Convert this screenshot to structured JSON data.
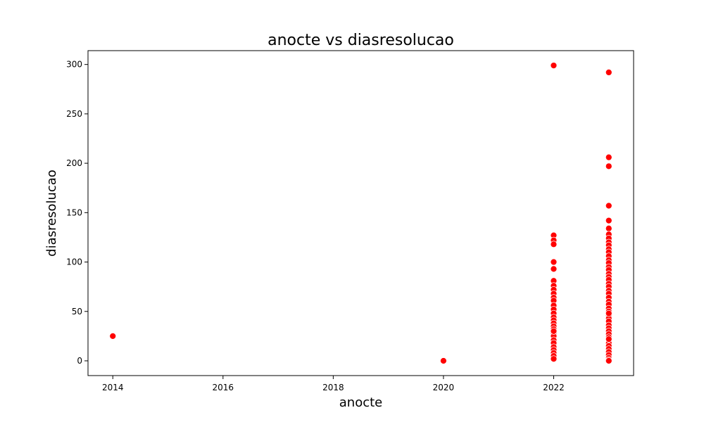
{
  "chart_data": {
    "type": "scatter",
    "title": "anocte vs diasresolucao",
    "xlabel": "anocte",
    "ylabel": "diasresolucao",
    "xlim": [
      2013.55,
      2023.45
    ],
    "ylim": [
      -14.95,
      314
    ],
    "x_ticks": [
      2014,
      2016,
      2018,
      2020,
      2022
    ],
    "x_tick_labels": [
      "2014",
      "2016",
      "2018",
      "2020",
      "2022"
    ],
    "y_ticks": [
      0,
      50,
      100,
      150,
      200,
      250,
      300
    ],
    "y_tick_labels": [
      "0",
      "50",
      "100",
      "150",
      "200",
      "250",
      "300"
    ],
    "grid": false,
    "legend": "none",
    "marker_color": "#ff0000",
    "marker_edge_color": "#ffffff",
    "series": [
      {
        "x": [
          2014,
          2020,
          2022,
          2022,
          2022,
          2022,
          2022,
          2022,
          2022,
          2022,
          2022,
          2022,
          2022,
          2022,
          2022,
          2022,
          2022,
          2022,
          2022,
          2022,
          2022,
          2022,
          2022,
          2022,
          2022,
          2022,
          2022,
          2022,
          2022,
          2022,
          2022,
          2022,
          2023,
          2023,
          2023,
          2023,
          2023,
          2023,
          2023,
          2023,
          2023,
          2023,
          2023,
          2023,
          2023,
          2023,
          2023,
          2023,
          2023,
          2023,
          2023,
          2023,
          2023,
          2023,
          2023,
          2023,
          2023,
          2023,
          2023,
          2023,
          2023,
          2023,
          2023,
          2023,
          2023,
          2023,
          2023,
          2023,
          2023,
          2023,
          2023,
          2023,
          2023,
          2023,
          2023,
          2023,
          2023,
          2023,
          2023,
          2023
        ],
        "y": [
          25,
          0,
          299,
          127,
          122,
          118,
          100,
          93,
          81,
          76,
          72,
          68,
          64,
          61,
          56,
          52,
          48,
          44,
          41,
          38,
          35,
          32,
          28,
          25,
          21,
          18,
          14,
          11,
          8,
          5,
          2,
          30,
          292,
          206,
          197,
          157,
          142,
          134,
          128,
          124,
          120,
          117,
          113,
          110,
          106,
          102,
          99,
          95,
          92,
          88,
          85,
          82,
          78,
          75,
          71,
          68,
          64,
          60,
          57,
          53,
          50,
          46,
          43,
          40,
          36,
          33,
          30,
          27,
          24,
          21,
          18,
          15,
          12,
          9,
          6,
          3,
          1,
          0,
          48,
          22
        ]
      }
    ]
  }
}
